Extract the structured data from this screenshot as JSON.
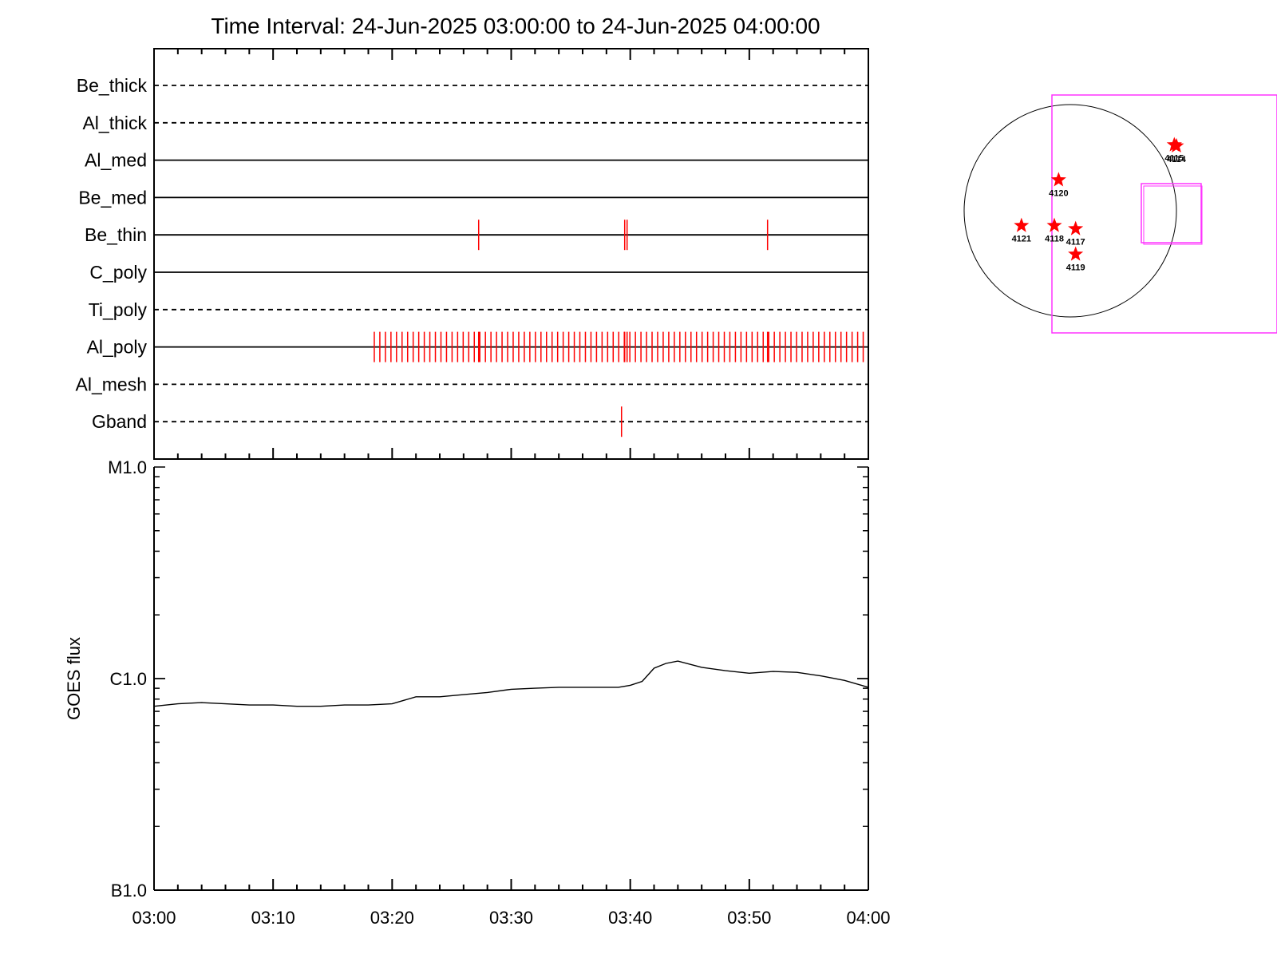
{
  "chart_data": [
    {
      "type": "timeline",
      "title": "Time Interval: 24-Jun-2025 03:00:00 to 24-Jun-2025 04:00:00",
      "xlim": [
        "03:00",
        "04:00"
      ],
      "rows": [
        {
          "name": "Be_thick",
          "style": "dashed",
          "events": []
        },
        {
          "name": "Al_thick",
          "style": "dashed",
          "events": []
        },
        {
          "name": "Al_med",
          "style": "solid",
          "events": []
        },
        {
          "name": "Be_med",
          "style": "solid",
          "events": []
        },
        {
          "name": "Be_thin",
          "style": "solid",
          "events": [
            "03:27:16",
            "03:39:32",
            "03:39:44",
            "03:51:32"
          ]
        },
        {
          "name": "C_poly",
          "style": "solid",
          "events": []
        },
        {
          "name": "Ti_poly",
          "style": "dashed",
          "events": []
        },
        {
          "name": "Al_poly",
          "style": "solid",
          "events": [
            "03:27:16",
            "03:39:32",
            "03:39:44",
            "03:51:32"
          ],
          "events_regular": {
            "start": "03:18:30",
            "end": "03:59:36",
            "step_seconds": 28
          }
        },
        {
          "name": "Al_mesh",
          "style": "dashed",
          "events": []
        },
        {
          "name": "Gband",
          "style": "dashed",
          "events": [
            "03:39:16"
          ]
        }
      ],
      "event_color": "#ff0000"
    },
    {
      "type": "line",
      "ylabel": "GOES flux",
      "yscale": "log",
      "ylim": [
        1e-07,
        1e-05
      ],
      "yticks": [
        {
          "value": 1e-05,
          "label": "M1.0"
        },
        {
          "value": 1e-06,
          "label": "C1.0"
        },
        {
          "value": 1e-07,
          "label": "B1.0"
        }
      ],
      "xlim": [
        "03:00",
        "04:00"
      ],
      "xticks": [
        "03:00",
        "03:10",
        "03:20",
        "03:30",
        "03:40",
        "03:50",
        "04:00"
      ],
      "series": [
        {
          "color": "#000000",
          "points": [
            [
              "03:00",
              7.4e-07
            ],
            [
              "03:02",
              7.6e-07
            ],
            [
              "03:04",
              7.7e-07
            ],
            [
              "03:06",
              7.6e-07
            ],
            [
              "03:08",
              7.5e-07
            ],
            [
              "03:10",
              7.5e-07
            ],
            [
              "03:12",
              7.4e-07
            ],
            [
              "03:14",
              7.4e-07
            ],
            [
              "03:16",
              7.5e-07
            ],
            [
              "03:18",
              7.5e-07
            ],
            [
              "03:20",
              7.6e-07
            ],
            [
              "03:22",
              8.2e-07
            ],
            [
              "03:24",
              8.2e-07
            ],
            [
              "03:26",
              8.4e-07
            ],
            [
              "03:28",
              8.6e-07
            ],
            [
              "03:30",
              8.9e-07
            ],
            [
              "03:32",
              9e-07
            ],
            [
              "03:34",
              9.1e-07
            ],
            [
              "03:36",
              9.1e-07
            ],
            [
              "03:38",
              9.1e-07
            ],
            [
              "03:39",
              9.1e-07
            ],
            [
              "03:40",
              9.3e-07
            ],
            [
              "03:41",
              9.7e-07
            ],
            [
              "03:42",
              1.12e-06
            ],
            [
              "03:43",
              1.18e-06
            ],
            [
              "03:44",
              1.21e-06
            ],
            [
              "03:46",
              1.13e-06
            ],
            [
              "03:48",
              1.09e-06
            ],
            [
              "03:50",
              1.06e-06
            ],
            [
              "03:52",
              1.08e-06
            ],
            [
              "03:54",
              1.07e-06
            ],
            [
              "03:56",
              1.03e-06
            ],
            [
              "03:58",
              9.8e-07
            ],
            [
              "04:00",
              9.1e-07
            ]
          ]
        }
      ]
    },
    {
      "type": "scatter",
      "description_markers": "solar disk with active regions",
      "points": [
        {
          "label": "4120",
          "x": -0.11,
          "y": 0.29
        },
        {
          "label": "4121",
          "x": -0.46,
          "y": -0.14
        },
        {
          "label": "4118",
          "x": -0.15,
          "y": -0.14
        },
        {
          "label": "4117",
          "x": 0.05,
          "y": -0.17
        },
        {
          "label": "4119",
          "x": 0.05,
          "y": -0.41
        },
        {
          "label": "4114",
          "x": 1.0,
          "y": 0.61
        },
        {
          "label": "4115",
          "x": 0.98,
          "y": 0.62
        }
      ],
      "marker_color": "#ff0000",
      "fov_color": "#ff33ff"
    }
  ]
}
